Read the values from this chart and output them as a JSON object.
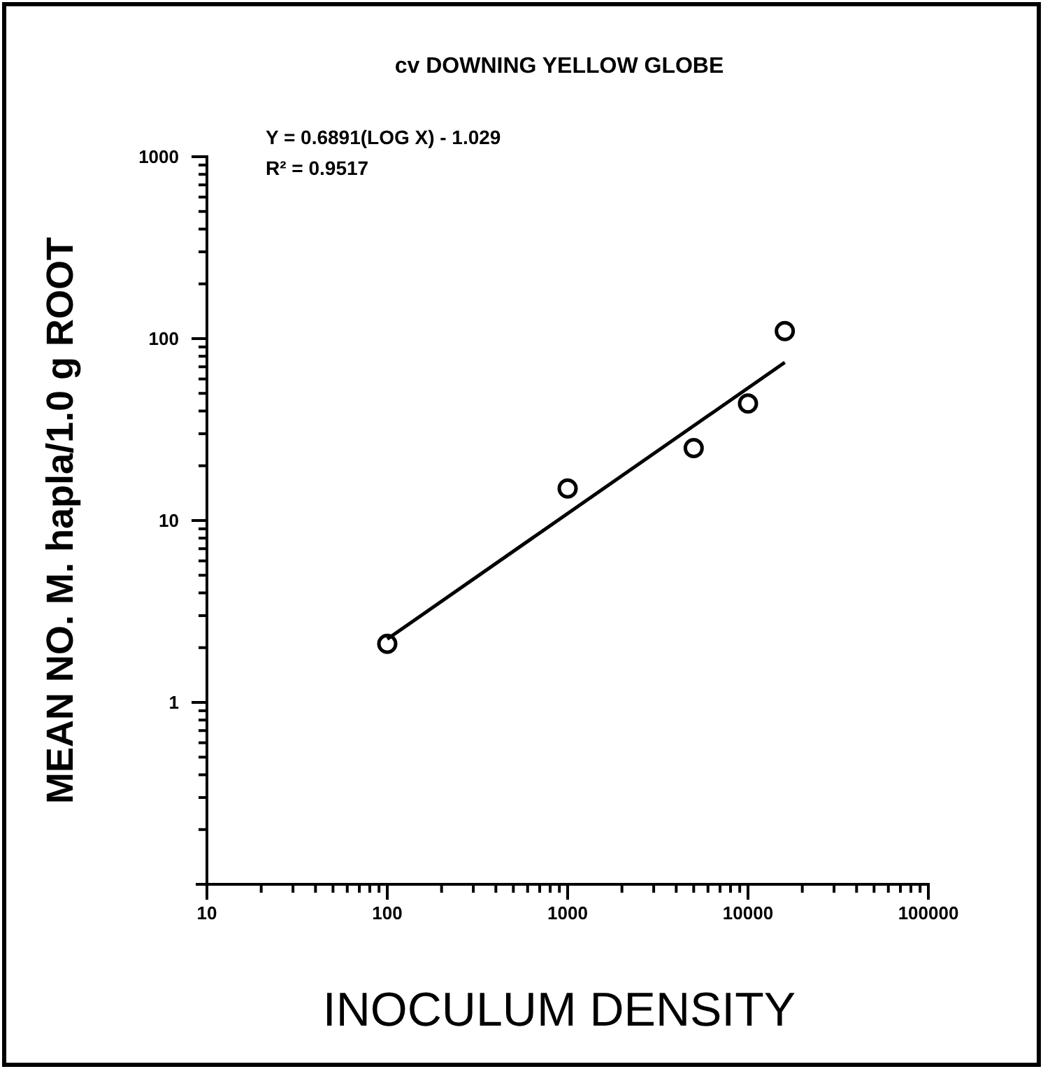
{
  "chart_data": {
    "type": "scatter",
    "title": "cv DOWNING YELLOW GLOBE",
    "xlabel": "INOCULUM DENSITY",
    "ylabel": "MEAN NO. M. hapla/1.0 g ROOT",
    "annotations": [
      "Y = 0.6891(LOG X) - 1.029",
      "R² = 0.9517"
    ],
    "log": "xy",
    "grid": false,
    "marker": "circle",
    "xlim": [
      10,
      100000
    ],
    "ylim": [
      0.1,
      1000
    ],
    "xticks": [
      10,
      {
        "value": 20,
        "label": null
      },
      {
        "value": 30,
        "label": null
      },
      {
        "value": 40,
        "label": null
      },
      {
        "value": 50,
        "label": null
      },
      {
        "value": 60,
        "label": null
      },
      {
        "value": 70,
        "label": null
      },
      {
        "value": 80,
        "label": null
      },
      {
        "value": 90,
        "label": null
      },
      100,
      {
        "value": 200,
        "label": null
      },
      {
        "value": 300,
        "label": null
      },
      {
        "value": 400,
        "label": null
      },
      {
        "value": 500,
        "label": null
      },
      {
        "value": 600,
        "label": null
      },
      {
        "value": 700,
        "label": null
      },
      {
        "value": 800,
        "label": null
      },
      {
        "value": 900,
        "label": null
      },
      1000,
      {
        "value": 2000,
        "label": null
      },
      {
        "value": 3000,
        "label": null
      },
      {
        "value": 4000,
        "label": null
      },
      {
        "value": 5000,
        "label": null
      },
      {
        "value": 6000,
        "label": null
      },
      {
        "value": 7000,
        "label": null
      },
      {
        "value": 8000,
        "label": null
      },
      {
        "value": 9000,
        "label": null
      },
      10000,
      {
        "value": 20000,
        "label": null
      },
      {
        "value": 30000,
        "label": null
      },
      {
        "value": 40000,
        "label": null
      },
      {
        "value": 50000,
        "label": null
      },
      {
        "value": 60000,
        "label": null
      },
      {
        "value": 70000,
        "label": null
      },
      {
        "value": 80000,
        "label": null
      },
      {
        "value": 90000,
        "label": null
      },
      100000
    ],
    "yticks": [
      {
        "value": 0.2,
        "label": null
      },
      {
        "value": 0.3,
        "label": null
      },
      {
        "value": 0.4,
        "label": null
      },
      {
        "value": 0.5,
        "label": null
      },
      {
        "value": 0.6,
        "label": null
      },
      {
        "value": 0.7,
        "label": null
      },
      {
        "value": 0.8,
        "label": null
      },
      {
        "value": 0.9,
        "label": null
      },
      1,
      {
        "value": 2,
        "label": null
      },
      {
        "value": 3,
        "label": null
      },
      {
        "value": 4,
        "label": null
      },
      {
        "value": 5,
        "label": null
      },
      {
        "value": 6,
        "label": null
      },
      {
        "value": 7,
        "label": null
      },
      {
        "value": 8,
        "label": null
      },
      {
        "value": 9,
        "label": null
      },
      10,
      {
        "value": 20,
        "label": null
      },
      {
        "value": 30,
        "label": null
      },
      {
        "value": 40,
        "label": null
      },
      {
        "value": 50,
        "label": null
      },
      {
        "value": 60,
        "label": null
      },
      {
        "value": 70,
        "label": null
      },
      {
        "value": 80,
        "label": null
      },
      {
        "value": 90,
        "label": null
      },
      100,
      {
        "value": 200,
        "label": null
      },
      {
        "value": 300,
        "label": null
      },
      {
        "value": 400,
        "label": null
      },
      {
        "value": 500,
        "label": null
      },
      {
        "value": 600,
        "label": null
      },
      {
        "value": 700,
        "label": null
      },
      {
        "value": 800,
        "label": null
      },
      {
        "value": 900,
        "label": null
      },
      1000
    ],
    "series": [
      {
        "color": "#000000",
        "x": [
          100,
          1000,
          5000,
          10000,
          16000
        ],
        "values": [
          2.1,
          15,
          25,
          44,
          110
        ]
      },
      {
        "type": "line",
        "color": "#000000",
        "marker": "none",
        "line_style": "solid",
        "x": [
          100,
          16000
        ],
        "values": [
          2.23,
          74
        ]
      }
    ]
  }
}
